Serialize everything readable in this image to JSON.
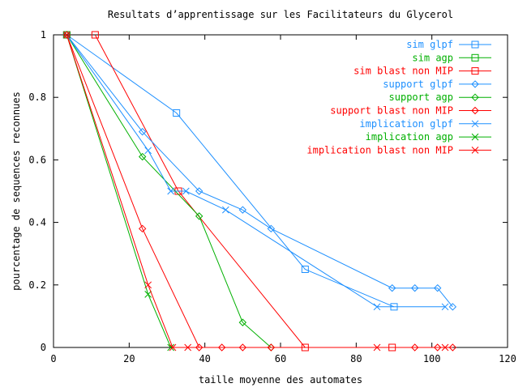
{
  "chart_data": {
    "type": "line",
    "title": "Resultats d’apprentissage sur les Facilitateurs du Glycerol",
    "xlabel": "taille moyenne des automates",
    "ylabel": "pourcentage de sequences reconnues",
    "xlim": [
      0,
      120
    ],
    "ylim": [
      0,
      1
    ],
    "xticks": [
      0,
      20,
      40,
      60,
      80,
      100,
      120
    ],
    "yticks": [
      0,
      0.2,
      0.4,
      0.6,
      0.8,
      1
    ],
    "xtick_labels": [
      "0",
      "20",
      "40",
      "60",
      "80",
      "100",
      "120"
    ],
    "ytick_labels": [
      "0",
      "0.2",
      "0.4",
      "0.6",
      "0.8",
      "1"
    ],
    "grid": false,
    "legend_position": "top-right",
    "series": [
      {
        "name": "sim glpf",
        "color": "#1e90ff",
        "marker": "square",
        "x": [
          3.5,
          32.5,
          66.5,
          90
        ],
        "y": [
          1,
          0.75,
          0.25,
          0.13
        ]
      },
      {
        "name": "sim agp",
        "color": "#00b000",
        "marker": "square",
        "x": [
          3.5
        ],
        "y": [
          1
        ]
      },
      {
        "name": "sim blast non MIP",
        "color": "#ff0000",
        "marker": "square",
        "x": [
          11,
          33,
          66.5,
          89.5
        ],
        "y": [
          1,
          0.5,
          0,
          0
        ]
      },
      {
        "name": "support glpf",
        "color": "#1e90ff",
        "marker": "diamond",
        "x": [
          3.5,
          23.5,
          38.5,
          50,
          57.5,
          89.5,
          95.5,
          101.5,
          105.5
        ],
        "y": [
          1,
          0.69,
          0.5,
          0.44,
          0.38,
          0.19,
          0.19,
          0.19,
          0.13
        ]
      },
      {
        "name": "support agp",
        "color": "#00b000",
        "marker": "diamond",
        "x": [
          3.5,
          23.5,
          38.5,
          50,
          57.5
        ],
        "y": [
          1,
          0.61,
          0.42,
          0.08,
          0
        ]
      },
      {
        "name": "support blast non MIP",
        "color": "#ff0000",
        "marker": "diamond",
        "x": [
          3.5,
          23.5,
          38.5,
          44.5,
          50,
          57.5,
          95.5,
          101.5,
          105.5
        ],
        "y": [
          1,
          0.38,
          0,
          0,
          0,
          0,
          0,
          0,
          0
        ]
      },
      {
        "name": "implication glpf",
        "color": "#1e90ff",
        "marker": "cross",
        "x": [
          3.5,
          25,
          31,
          35,
          45.5,
          85.5,
          103.5
        ],
        "y": [
          1,
          0.63,
          0.5,
          0.5,
          0.44,
          0.13,
          0.13
        ]
      },
      {
        "name": "implication agp",
        "color": "#00b000",
        "marker": "cross",
        "x": [
          3.5,
          25,
          31
        ],
        "y": [
          1,
          0.17,
          0
        ]
      },
      {
        "name": "implication blast non MIP",
        "color": "#ff0000",
        "marker": "cross",
        "x": [
          3.5,
          25,
          31.5,
          35.5,
          85.5,
          103.5
        ],
        "y": [
          1,
          0.2,
          0,
          0,
          0,
          0
        ]
      }
    ]
  }
}
